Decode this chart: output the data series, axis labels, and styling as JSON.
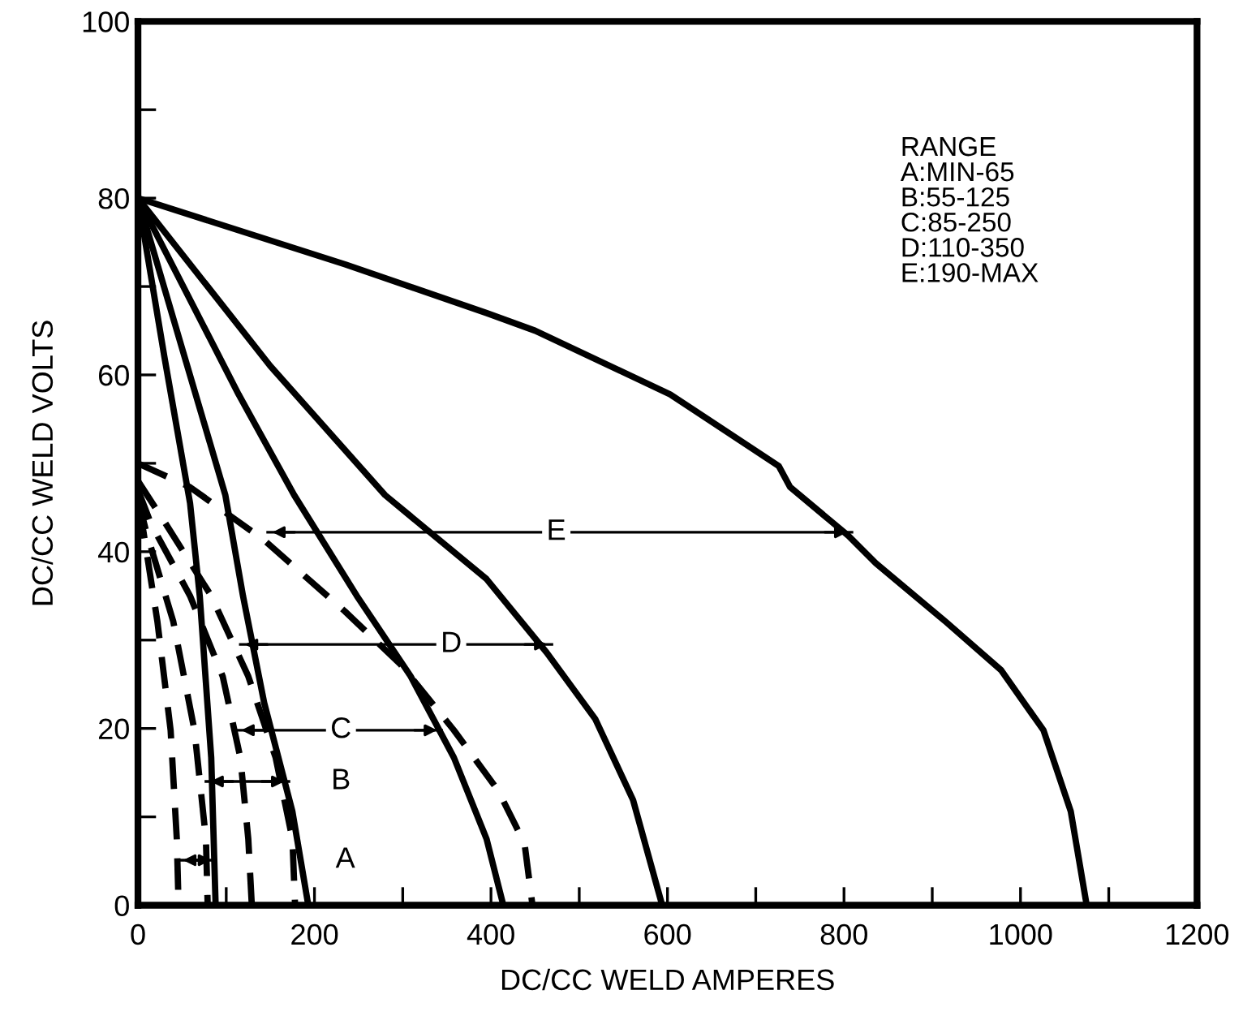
{
  "chart_data": {
    "type": "line",
    "xlabel": "DC/CC WELD AMPERES",
    "ylabel": "DC/CC WELD VOLTS",
    "xlim": [
      0,
      1200
    ],
    "ylim": [
      0,
      100
    ],
    "xticks": [
      0,
      200,
      400,
      600,
      800,
      1000,
      1200
    ],
    "yticks": [
      0,
      20,
      40,
      60,
      80,
      100
    ],
    "grid": false,
    "legend": false,
    "marker": "none",
    "series": [
      {
        "color": "#000000",
        "line_style": "solid",
        "x": [
          0,
          235,
          395,
          450,
          603,
          726,
          739,
          805,
          836,
          915,
          978,
          1026,
          1057,
          1075
        ],
        "values": [
          80,
          72.5,
          67,
          65,
          57.8,
          49.7,
          47.3,
          41.8,
          38.7,
          32.1,
          26.6,
          19.8,
          10.6,
          0
        ]
      },
      {
        "color": "#000000",
        "line_style": "solid",
        "x": [
          0,
          150,
          280,
          395,
          463,
          518,
          561,
          594
        ],
        "values": [
          80,
          61,
          46.4,
          36.9,
          28.6,
          21.1,
          11.9,
          0
        ]
      },
      {
        "color": "#000000",
        "line_style": "solid",
        "x": [
          0,
          114,
          177,
          248,
          309,
          358,
          395,
          414
        ],
        "values": [
          80,
          57.8,
          46.4,
          35,
          25.9,
          16.7,
          7.5,
          0
        ]
      },
      {
        "color": "#000000",
        "line_style": "solid",
        "x": [
          0,
          50,
          99,
          119,
          143,
          175,
          193
        ],
        "values": [
          80,
          63,
          46.4,
          35,
          22.9,
          10.6,
          0
        ]
      },
      {
        "color": "#000000",
        "line_style": "solid",
        "x": [
          0,
          30,
          59,
          70,
          83,
          88
        ],
        "values": [
          80,
          62,
          45.5,
          35,
          16.7,
          0
        ]
      },
      {
        "color": "#000000",
        "line_style": "dashed",
        "x": [
          0,
          59,
          143,
          235,
          298,
          358,
          408,
          438,
          447
        ],
        "values": [
          50,
          47.3,
          41.3,
          33.2,
          27.2,
          19.8,
          13,
          7,
          0
        ]
      },
      {
        "color": "#000000",
        "line_style": "dashed",
        "x": [
          0,
          28,
          83,
          125,
          156,
          175,
          178
        ],
        "values": [
          48,
          43.7,
          35,
          25.9,
          16.7,
          7.5,
          0
        ]
      },
      {
        "color": "#000000",
        "line_style": "dashed",
        "x": [
          0,
          15,
          59,
          96,
          116,
          125,
          129
        ],
        "values": [
          47,
          43.1,
          35,
          25.9,
          16.7,
          7.5,
          0
        ]
      },
      {
        "color": "#000000",
        "line_style": "dashed",
        "x": [
          0,
          9,
          40,
          64,
          77,
          79
        ],
        "values": [
          46,
          42.4,
          32.1,
          19.8,
          7.5,
          0
        ]
      },
      {
        "color": "#000000",
        "line_style": "dashed",
        "x": [
          0,
          6,
          22,
          37,
          44,
          46
        ],
        "values": [
          45,
          42.4,
          32.1,
          19.8,
          7.5,
          0
        ]
      },
      {
        "color": "#000000",
        "line_style": "solid",
        "x": [
          147,
          809
        ],
        "values": [
          42.2,
          42.2
        ]
      },
      {
        "color": "#000000",
        "line_style": "solid",
        "x": [
          116,
          469
        ],
        "values": [
          29.5,
          29.5
        ]
      },
      {
        "color": "#000000",
        "line_style": "solid",
        "x": [
          112,
          344
        ],
        "values": [
          19.8,
          19.8
        ]
      },
      {
        "color": "#000000",
        "line_style": "solid",
        "x": [
          77,
          171
        ],
        "values": [
          14,
          14
        ]
      },
      {
        "color": "#000000",
        "line_style": "solid",
        "x": [
          46,
          88
        ],
        "values": [
          5.1,
          5.1
        ]
      }
    ],
    "annotations": [
      {
        "text": "E",
        "x": 474,
        "y": 42.2
      },
      {
        "text": "D",
        "x": 355,
        "y": 29.5
      },
      {
        "text": "C",
        "x": 230,
        "y": 19.8
      },
      {
        "text": "B",
        "x": 230,
        "y": 14
      },
      {
        "text": "A",
        "x": 235,
        "y": 5.1
      },
      "RANGE\nA:MIN-65\nB:55-125\nC:85-250\nD:110-350\nE:190-MAX"
    ]
  }
}
